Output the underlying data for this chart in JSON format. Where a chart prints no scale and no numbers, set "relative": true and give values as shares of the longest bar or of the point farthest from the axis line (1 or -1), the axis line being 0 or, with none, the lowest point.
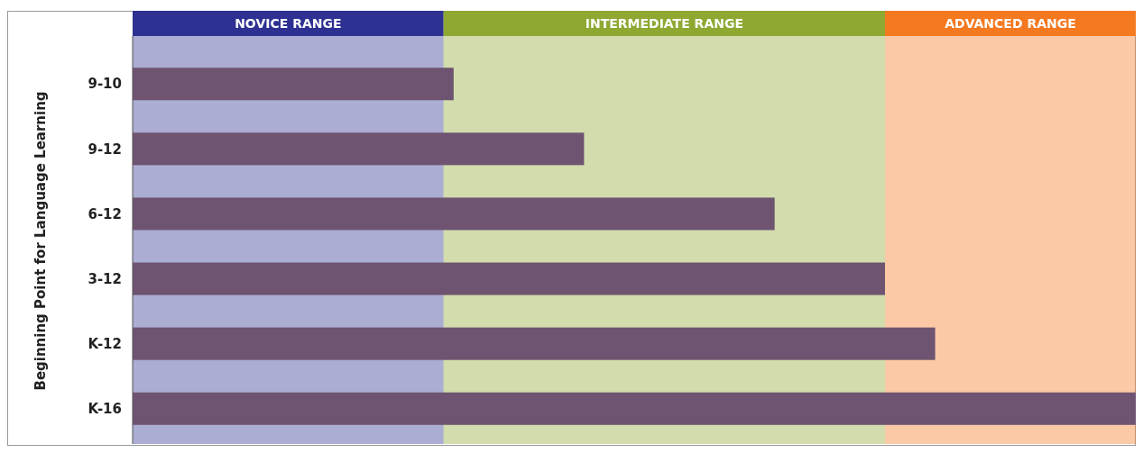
{
  "chart_data": {
    "type": "bar",
    "orientation": "horizontal",
    "relative": true,
    "ylabel": "Beginning Point for Language Learning",
    "categories": [
      "9-10",
      "9-12",
      "6-12",
      "3-12",
      "K-12",
      "K-16"
    ],
    "values": [
      0.32,
      0.45,
      0.64,
      0.75,
      0.8,
      1
    ],
    "color": "#6e5470",
    "bands": [
      {
        "axis": "x",
        "from": 0,
        "to": 0.31,
        "label": "NOVICE RANGE",
        "color": "#2e3192"
      },
      {
        "axis": "x",
        "from": 0.31,
        "to": 0.75,
        "label": "INTERMEDIATE RANGE",
        "color": "#8ea832"
      },
      {
        "axis": "x",
        "from": 0.75,
        "to": 1,
        "label": "ADVANCED RANGE",
        "color": "#f47920"
      }
    ]
  }
}
